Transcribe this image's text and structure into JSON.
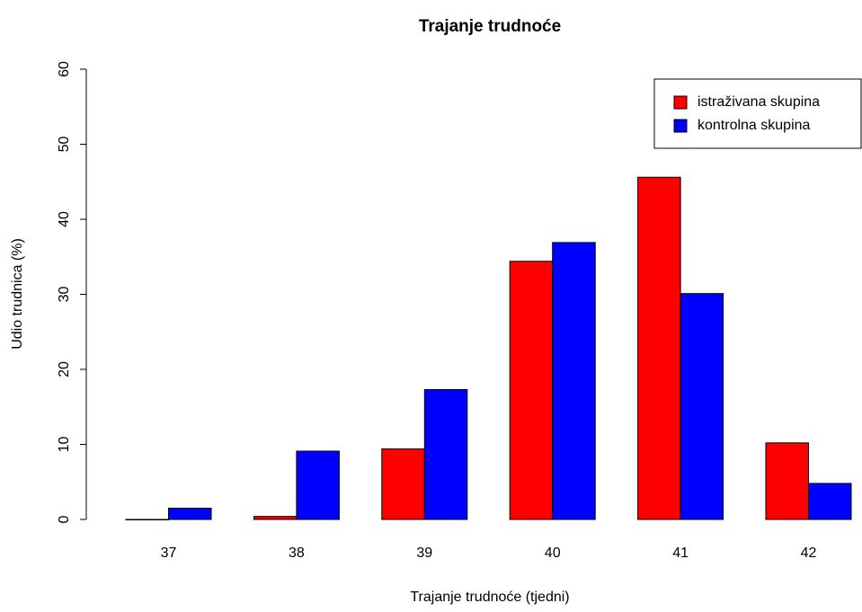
{
  "chart_data": {
    "type": "bar",
    "title": "Trajanje trudnoće",
    "x_label": "Trajanje trudnoće (tjedni)",
    "y_label": "Udio trudnica (%)",
    "categories": [
      "37",
      "38",
      "39",
      "40",
      "41",
      "42"
    ],
    "series": [
      {
        "name": "istraživana skupina",
        "color": "#ff0000",
        "values": [
          0,
          0.4,
          9.4,
          34.4,
          45.6,
          10.2
        ]
      },
      {
        "name": "kontrolna skupina",
        "color": "#0000ff",
        "values": [
          1.5,
          9.1,
          17.3,
          36.9,
          30.1,
          4.8
        ]
      }
    ],
    "ylim": [
      0,
      60
    ],
    "yticks": [
      0,
      10,
      20,
      30,
      40,
      50,
      60
    ],
    "legend": "top-right"
  }
}
